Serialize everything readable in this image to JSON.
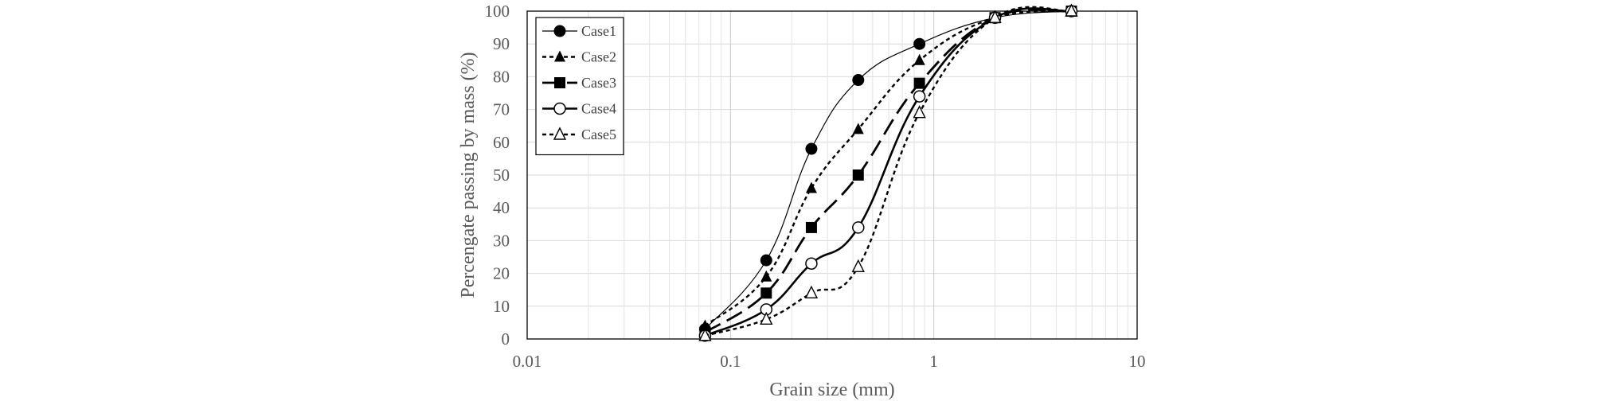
{
  "chart_data": {
    "type": "line",
    "title": "",
    "xlabel": "Grain size (mm)",
    "ylabel": "Percengate passing by mass (%)",
    "x_scale": "log",
    "xlim": [
      0.01,
      10
    ],
    "ylim": [
      0,
      100
    ],
    "x_ticks": [
      "0.01",
      "0.1",
      "1",
      "10"
    ],
    "x_tick_values": [
      0.01,
      0.1,
      1,
      10
    ],
    "y_ticks": [
      "0",
      "10",
      "20",
      "30",
      "40",
      "50",
      "60",
      "70",
      "80",
      "90",
      "100"
    ],
    "y_tick_values": [
      0,
      10,
      20,
      30,
      40,
      50,
      60,
      70,
      80,
      90,
      100
    ],
    "grid": true,
    "legend_position": "top-left",
    "series": [
      {
        "name": "Case1",
        "marker": "filled-circle",
        "line": "solid-thin",
        "x": [
          0.075,
          0.15,
          0.25,
          0.425,
          0.85,
          2.0,
          4.75
        ],
        "y": [
          3,
          24,
          58,
          79,
          90,
          98,
          100
        ]
      },
      {
        "name": "Case2",
        "marker": "filled-triangle",
        "line": "short-dash",
        "x": [
          0.075,
          0.15,
          0.25,
          0.425,
          0.85,
          2.0,
          4.75
        ],
        "y": [
          4,
          19,
          46,
          64,
          85,
          98,
          100
        ]
      },
      {
        "name": "Case3",
        "marker": "filled-square",
        "line": "long-dash",
        "x": [
          0.075,
          0.15,
          0.25,
          0.425,
          0.85,
          2.0,
          4.75
        ],
        "y": [
          2,
          14,
          34,
          50,
          78,
          98,
          100
        ]
      },
      {
        "name": "Case4",
        "marker": "open-circle",
        "line": "solid-thick",
        "x": [
          0.075,
          0.15,
          0.25,
          0.425,
          0.85,
          2.0,
          4.75
        ],
        "y": [
          1,
          9,
          23,
          34,
          74,
          98,
          100
        ]
      },
      {
        "name": "Case5",
        "marker": "open-triangle",
        "line": "short-dash",
        "x": [
          0.075,
          0.15,
          0.25,
          0.425,
          0.85,
          2.0,
          4.75
        ],
        "y": [
          1,
          6,
          14,
          22,
          69,
          98,
          100
        ]
      }
    ]
  }
}
